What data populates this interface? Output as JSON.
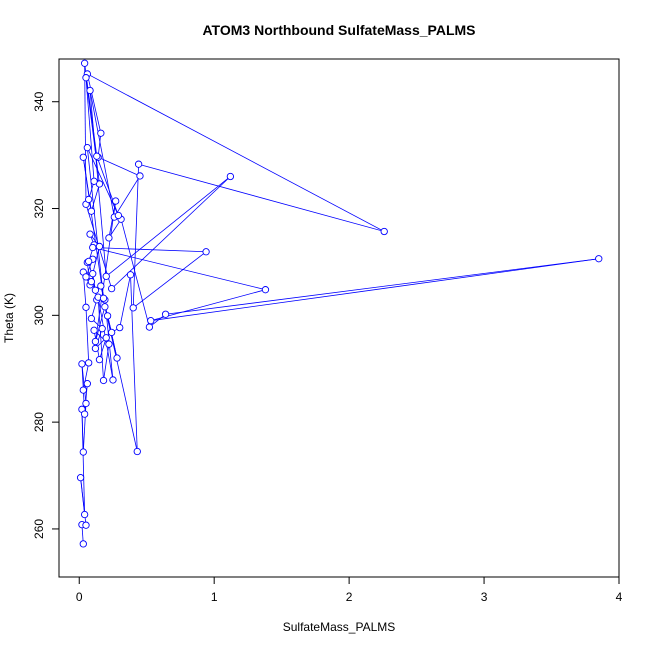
{
  "chart_data": {
    "type": "line",
    "title": "ATOM3 Northbound SulfateMass_PALMS",
    "xlabel": "SulfateMass_PALMS",
    "ylabel": "Theta (K)",
    "xlim": [
      -0.15,
      4.0
    ],
    "ylim": [
      251,
      348
    ],
    "x_ticks": [
      0,
      1,
      2,
      3,
      4
    ],
    "y_ticks": [
      260,
      280,
      300,
      320,
      340
    ],
    "grid": false,
    "line_color": "#0000ff",
    "marker": "open-circle",
    "series": [
      {
        "x": [
          0.03,
          0.02,
          0.05,
          0.01,
          0.04,
          0.02,
          0.03,
          0.05,
          0.02,
          0.04,
          0.06,
          0.03,
          0.07,
          0.05,
          0.03,
          0.08,
          0.06,
          0.1,
          0.05,
          0.09,
          0.12,
          0.07,
          0.11,
          0.08,
          0.15,
          0.1,
          0.13,
          0.09,
          0.17,
          0.12,
          0.2,
          0.15,
          0.11,
          0.22,
          0.18,
          0.14,
          0.25,
          0.19,
          0.16,
          0.28,
          0.21,
          0.24,
          0.3,
          0.38,
          0.43,
          0.19,
          0.12,
          0.27,
          0.22,
          0.31,
          0.52,
          0.64,
          3.85,
          0.53,
          1.38,
          0.1,
          0.94,
          0.4,
          0.44,
          2.26,
          0.06,
          0.16,
          0.14,
          0.45,
          0.26,
          0.08,
          0.2,
          1.12,
          0.24,
          0.05,
          0.04,
          0.13,
          0.29,
          0.06,
          0.18,
          0.03,
          0.09,
          0.15,
          0.05,
          0.11,
          0.07
        ],
        "y": [
          257.2,
          260.8,
          260.7,
          269.6,
          262.7,
          282.4,
          274.4,
          283.5,
          290.9,
          281.5,
          287.2,
          286.0,
          291.1,
          301.5,
          308.1,
          305.7,
          309.9,
          310.5,
          307.2,
          306.3,
          304.7,
          310.1,
          313.2,
          315.2,
          312.9,
          307.8,
          302.9,
          299.4,
          297.5,
          293.8,
          295.8,
          291.7,
          297.2,
          294.6,
          287.8,
          303.4,
          287.9,
          302.9,
          305.5,
          292.0,
          299.9,
          296.8,
          297.7,
          307.6,
          274.5,
          301.6,
          295.1,
          321.4,
          314.5,
          318.0,
          297.8,
          300.2,
          310.6,
          299.0,
          304.8,
          312.7,
          311.9,
          301.4,
          328.3,
          315.7,
          345.2,
          334.1,
          329.6,
          326.1,
          318.4,
          342.1,
          307.3,
          326.0,
          305.0,
          320.8,
          347.2,
          329.8,
          318.7,
          331.4,
          303.2,
          329.6,
          319.5,
          324.6,
          344.5,
          325.1,
          321.7
        ]
      }
    ]
  }
}
